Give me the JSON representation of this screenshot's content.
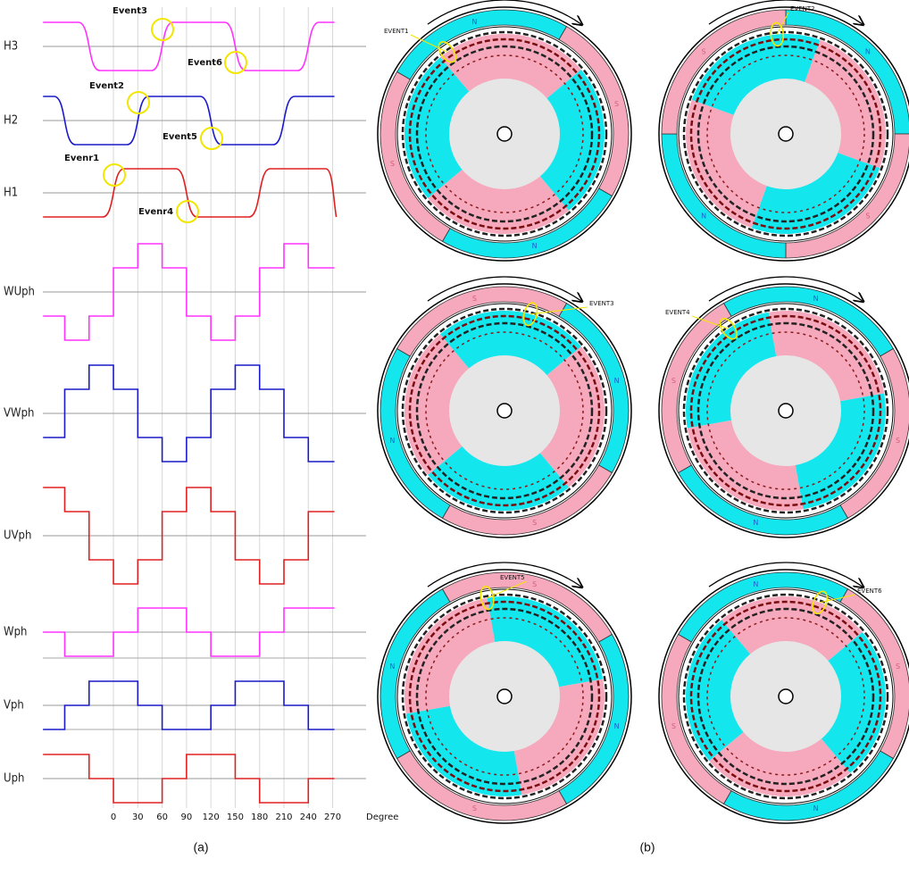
{
  "signals": {
    "labels": [
      "H3",
      "H2",
      "H1",
      "WUph",
      "VWph",
      "UVph",
      "Wph",
      "Vph",
      "Uph"
    ]
  },
  "events": [
    "Evenr1",
    "Event2",
    "Event3",
    "Evenr4",
    "Event5",
    "Event6"
  ],
  "axis": {
    "ticks": [
      "0",
      "30",
      "60",
      "90",
      "120",
      "150",
      "180",
      "210",
      "240",
      "270"
    ],
    "label": "Degree"
  },
  "captions": [
    "(a)",
    "(b)"
  ],
  "motors": [
    {
      "event": "EVENT1",
      "poles": [
        "N",
        "S",
        "N",
        "S"
      ]
    },
    {
      "event": "EVENT2",
      "poles": [
        "N",
        "S",
        "N",
        "S"
      ]
    },
    {
      "event": "EVENT3",
      "poles": [
        "N",
        "S",
        "N",
        "S"
      ]
    },
    {
      "event": "EVENT4",
      "poles": [
        "N",
        "S",
        "N",
        "S"
      ]
    },
    {
      "event": "EVENT5",
      "poles": [
        "N",
        "S",
        "N",
        "S"
      ]
    },
    {
      "event": "EVENT6",
      "poles": [
        "N",
        "S",
        "N",
        "S"
      ]
    }
  ]
}
